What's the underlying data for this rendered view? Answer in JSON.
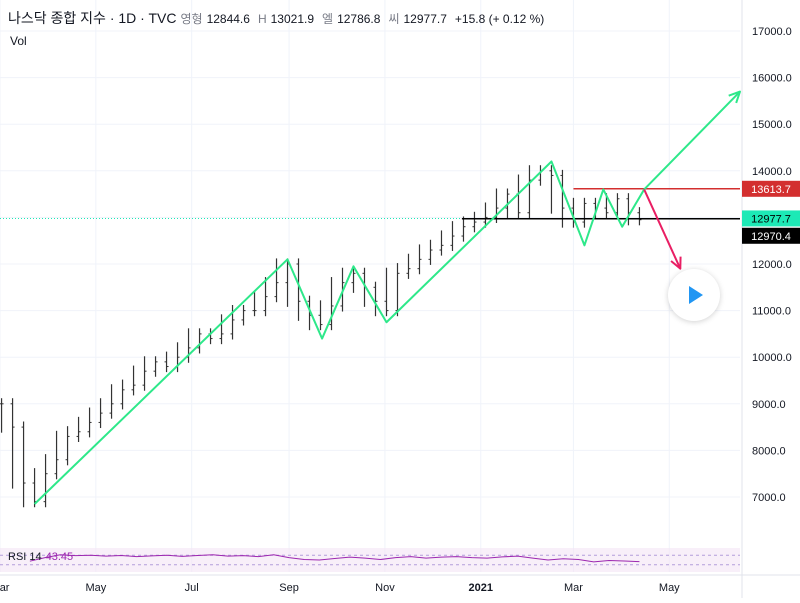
{
  "header": {
    "symbol": "나스닥 종합 지수 · 1D · TVC",
    "open_label": "영형",
    "open": "12844.6",
    "high_label": "H",
    "high": "13021.9",
    "low_label": "엘",
    "low": "12786.8",
    "close_label": "씨",
    "close": "12977.7",
    "change": "+15.8 (+ 0.12 %)"
  },
  "vol_label": "Vol",
  "rsi": {
    "label": "RSI 14",
    "value": "43.45"
  },
  "price_tags": {
    "resistance": "13613.7",
    "current": "12977.7",
    "support": "12970.4"
  },
  "colors": {
    "up_line": "#2ee88a",
    "down_arrow": "#e91e63",
    "resistance": "#d32f2f",
    "support": "#000000",
    "current": "#1de9b6",
    "rsi": "#9c27b0",
    "bars": "#333333"
  },
  "chart_data": {
    "type": "line",
    "title": "나스닥 종합 지수 · 1D · TVC",
    "ylim": [
      6000,
      17500
    ],
    "y_ticks": [
      "7000.0",
      "8000.0",
      "9000.0",
      "10000.0",
      "11000.0",
      "12000.0",
      "13000.0",
      "14000.0",
      "15000.0",
      "16000.0",
      "17000.0"
    ],
    "x_ticks": [
      "Mar",
      "May",
      "Jul",
      "Sep",
      "Nov",
      "2021",
      "Mar",
      "May"
    ],
    "x_range": [
      "2020-03-01",
      "2021-06-15"
    ],
    "grid": true,
    "series": [
      {
        "type": "ohlc-bars",
        "points": [
          [
            "2020-03-02",
            9000
          ],
          [
            "2020-03-09",
            8500
          ],
          [
            "2020-03-16",
            7300
          ],
          [
            "2020-03-23",
            6900
          ],
          [
            "2020-03-30",
            7500
          ],
          [
            "2020-04-06",
            7800
          ],
          [
            "2020-04-13",
            8300
          ],
          [
            "2020-04-20",
            8400
          ],
          [
            "2020-04-27",
            8600
          ],
          [
            "2020-05-04",
            8800
          ],
          [
            "2020-05-11",
            9000
          ],
          [
            "2020-05-18",
            9300
          ],
          [
            "2020-05-25",
            9400
          ],
          [
            "2020-06-01",
            9700
          ],
          [
            "2020-06-08",
            9900
          ],
          [
            "2020-06-15",
            9800
          ],
          [
            "2020-06-22",
            10000
          ],
          [
            "2020-06-29",
            10200
          ],
          [
            "2020-07-06",
            10500
          ],
          [
            "2020-07-13",
            10400
          ],
          [
            "2020-07-20",
            10500
          ],
          [
            "2020-07-27",
            10800
          ],
          [
            "2020-08-03",
            11000
          ],
          [
            "2020-08-10",
            11000
          ],
          [
            "2020-08-17",
            11300
          ],
          [
            "2020-08-24",
            11600
          ],
          [
            "2020-08-31",
            12000
          ],
          [
            "2020-09-07",
            11200
          ],
          [
            "2020-09-14",
            10900
          ],
          [
            "2020-09-21",
            10700
          ],
          [
            "2020-09-28",
            11100
          ],
          [
            "2020-10-05",
            11600
          ],
          [
            "2020-10-12",
            11800
          ],
          [
            "2020-10-19",
            11500
          ],
          [
            "2020-10-26",
            11200
          ],
          [
            "2020-11-02",
            11000
          ],
          [
            "2020-11-09",
            11800
          ],
          [
            "2020-11-16",
            11900
          ],
          [
            "2020-11-23",
            12100
          ],
          [
            "2020-11-30",
            12300
          ],
          [
            "2020-12-07",
            12400
          ],
          [
            "2020-12-14",
            12600
          ],
          [
            "2020-12-21",
            12800
          ],
          [
            "2020-12-28",
            12900
          ],
          [
            "2021-01-04",
            13000
          ],
          [
            "2021-01-11",
            13200
          ],
          [
            "2021-01-18",
            13500
          ],
          [
            "2021-01-25",
            13100
          ],
          [
            "2021-02-01",
            13800
          ],
          [
            "2021-02-08",
            14000
          ],
          [
            "2021-02-15",
            13900
          ],
          [
            "2021-02-22",
            13200
          ],
          [
            "2021-03-01",
            12900
          ],
          [
            "2021-03-08",
            13300
          ],
          [
            "2021-03-15",
            13200
          ],
          [
            "2021-03-22",
            13100
          ],
          [
            "2021-03-29",
            13400
          ],
          [
            "2021-04-05",
            13100
          ],
          [
            "2021-04-12",
            12950
          ]
        ]
      },
      {
        "type": "pattern",
        "points": [
          [
            "2020-03-23",
            6850
          ],
          [
            "2020-08-31",
            12100
          ],
          [
            "2020-09-22",
            10400
          ],
          [
            "2020-10-12",
            11950
          ],
          [
            "2020-11-02",
            10750
          ],
          [
            "2021-02-15",
            14200
          ],
          [
            "2021-03-08",
            12400
          ],
          [
            "2021-03-20",
            13600
          ],
          [
            "2021-04-01",
            12800
          ],
          [
            "2021-04-15",
            13600
          ],
          [
            "2021-06-15",
            15700
          ]
        ]
      },
      {
        "type": "arrow",
        "points": [
          [
            "2021-04-15",
            13600
          ],
          [
            "2021-05-08",
            11900
          ]
        ]
      }
    ],
    "levels": [
      {
        "name": "resistance",
        "value": 13613.7
      },
      {
        "name": "support",
        "value": 12970.4
      },
      {
        "name": "current",
        "value": 12977.7
      }
    ]
  },
  "rsi_chart": {
    "ylim": [
      0,
      100
    ],
    "bands": [
      30,
      70
    ],
    "values": [
      45,
      60,
      72,
      68,
      70,
      66,
      69,
      64,
      67,
      70,
      65,
      69,
      72,
      66,
      68,
      64,
      72,
      60,
      52,
      50,
      56,
      62,
      58,
      52,
      60,
      64,
      58,
      62,
      64,
      60,
      58,
      63,
      66,
      58,
      50,
      55,
      52,
      42,
      48,
      46,
      43
    ]
  }
}
